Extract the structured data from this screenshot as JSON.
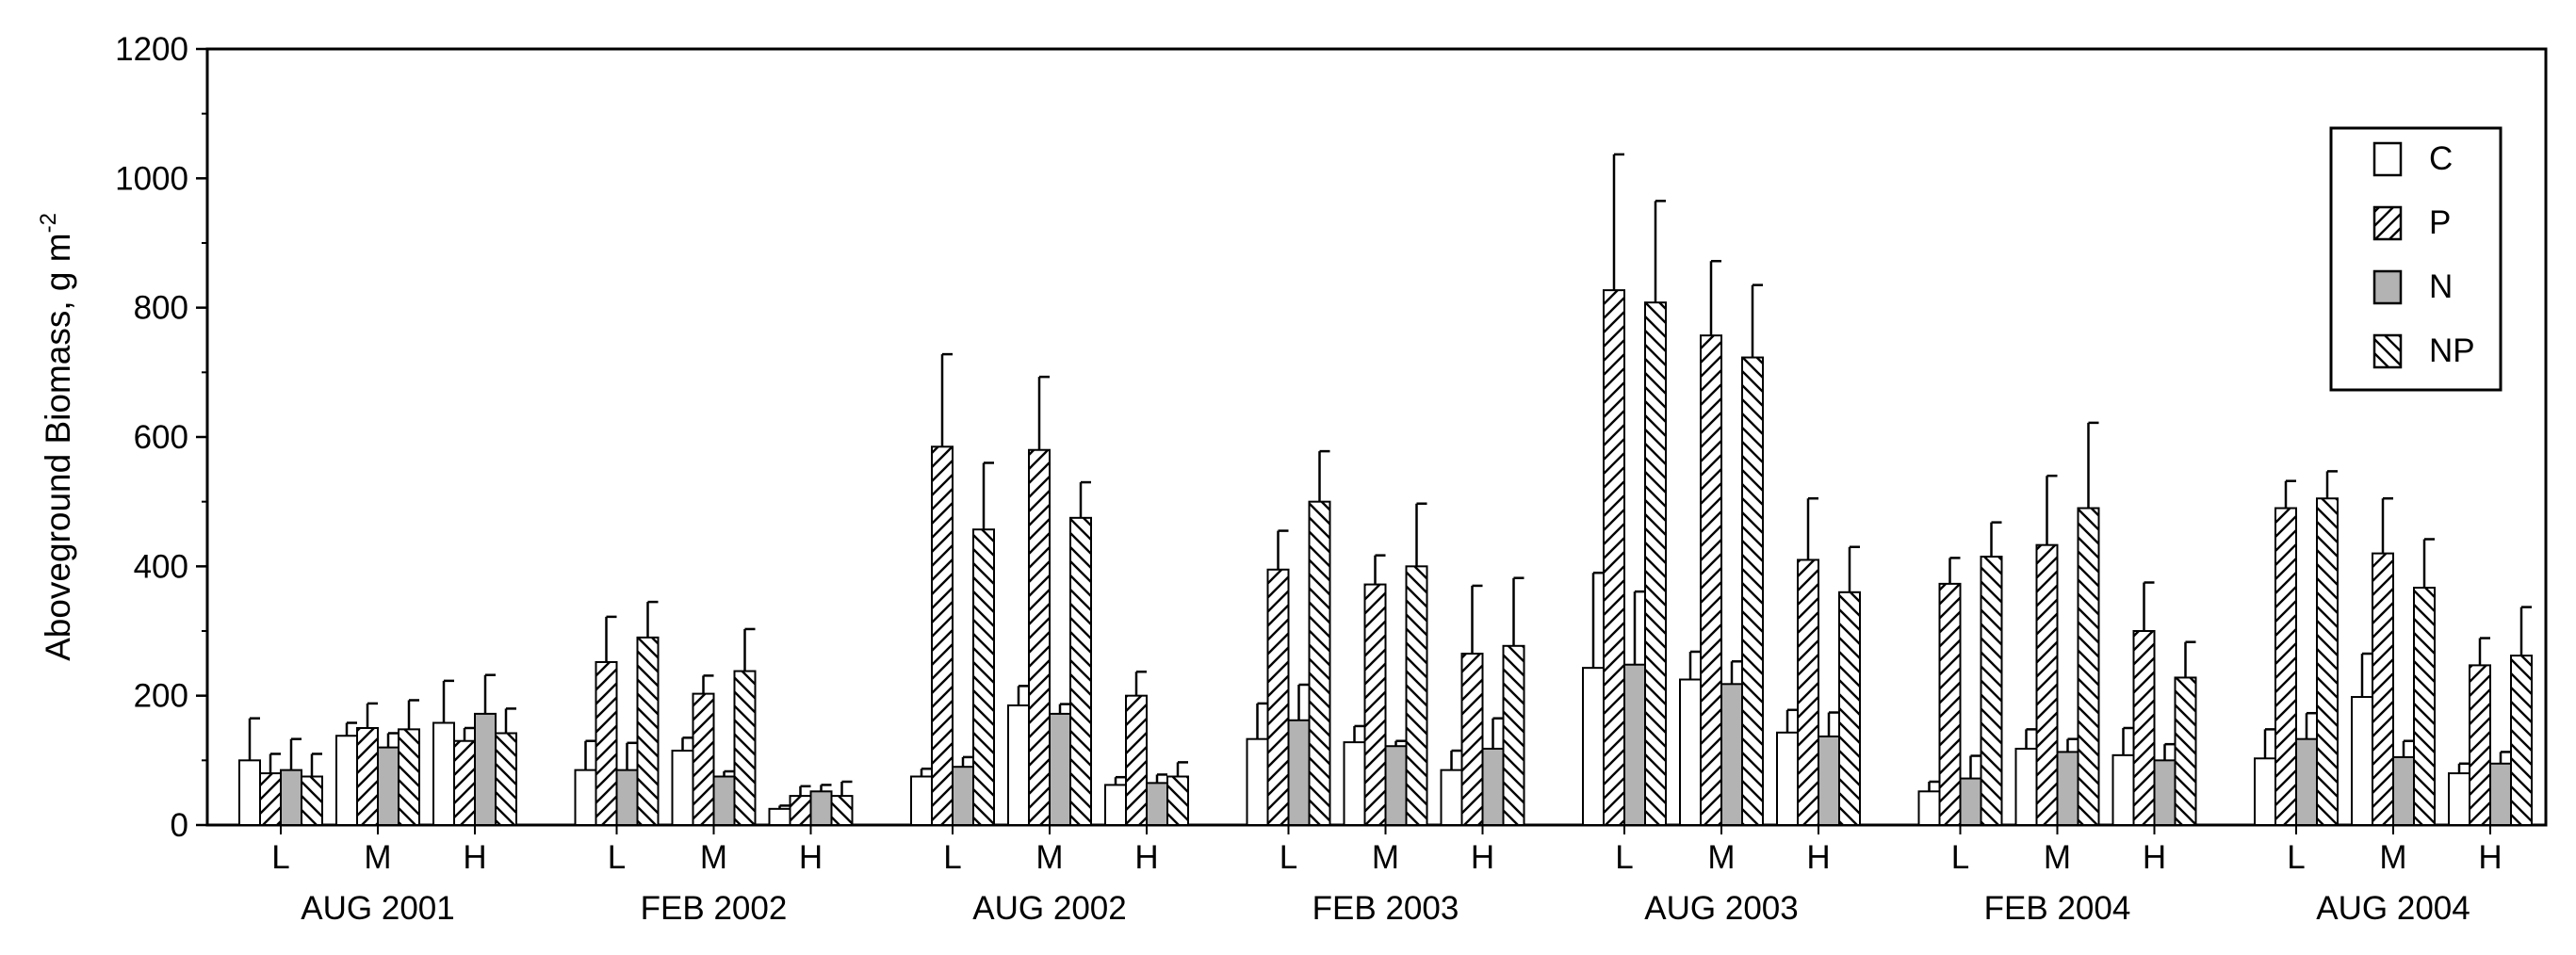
{
  "chart_data": {
    "type": "bar",
    "ylabel": "Aboveground Biomass, g m",
    "ylabel_sup": "-2",
    "xlabel": "",
    "ylim": [
      0,
      1200
    ],
    "yticks": [
      0,
      200,
      400,
      600,
      800,
      1000,
      1200
    ],
    "grid": false,
    "legend_position": "top-right",
    "error_bars": true,
    "series": [
      {
        "name": "C",
        "fill": "#ffffff",
        "pattern": "none"
      },
      {
        "name": "P",
        "fill": "#ffffff",
        "pattern": "hatch-forward"
      },
      {
        "name": "N",
        "fill": "#b3b3b3",
        "pattern": "none"
      },
      {
        "name": "NP",
        "fill": "#ffffff",
        "pattern": "hatch-back"
      }
    ],
    "groups": [
      {
        "label": "AUG 2001",
        "subgroups": [
          {
            "label": "L",
            "values": [
              100,
              80,
              85,
              75
            ],
            "errors": [
              65,
              30,
              48,
              35
            ]
          },
          {
            "label": "M",
            "values": [
              138,
              150,
              120,
              148
            ],
            "errors": [
              20,
              38,
              22,
              45
            ]
          },
          {
            "label": "H",
            "values": [
              158,
              130,
              172,
              142
            ],
            "errors": [
              65,
              20,
              60,
              38
            ]
          }
        ]
      },
      {
        "label": "FEB 2002",
        "subgroups": [
          {
            "label": "L",
            "values": [
              85,
              252,
              85,
              290
            ],
            "errors": [
              45,
              70,
              42,
              55
            ]
          },
          {
            "label": "M",
            "values": [
              115,
              203,
              75,
              238
            ],
            "errors": [
              20,
              28,
              8,
              65
            ]
          },
          {
            "label": "H",
            "values": [
              25,
              45,
              52,
              45
            ],
            "errors": [
              5,
              15,
              10,
              22
            ]
          }
        ]
      },
      {
        "label": "AUG 2002",
        "subgroups": [
          {
            "label": "L",
            "values": [
              75,
              585,
              90,
              457
            ],
            "errors": [
              12,
              143,
              15,
              103
            ]
          },
          {
            "label": "M",
            "values": [
              185,
              580,
              172,
              475
            ],
            "errors": [
              30,
              113,
              15,
              55
            ]
          },
          {
            "label": "H",
            "values": [
              62,
              200,
              65,
              75
            ],
            "errors": [
              12,
              37,
              13,
              22
            ]
          }
        ]
      },
      {
        "label": "FEB 2003",
        "subgroups": [
          {
            "label": "L",
            "values": [
              133,
              395,
              162,
              500
            ],
            "errors": [
              55,
              60,
              55,
              78
            ]
          },
          {
            "label": "M",
            "values": [
              128,
              372,
              122,
              400
            ],
            "errors": [
              25,
              45,
              8,
              97
            ]
          },
          {
            "label": "H",
            "values": [
              85,
              265,
              118,
              277
            ],
            "errors": [
              30,
              105,
              47,
              105
            ]
          }
        ]
      },
      {
        "label": "AUG 2003",
        "subgroups": [
          {
            "label": "L",
            "values": [
              243,
              827,
              248,
              808
            ],
            "errors": [
              147,
              210,
              113,
              157
            ]
          },
          {
            "label": "M",
            "values": [
              225,
              757,
              218,
              723
            ],
            "errors": [
              43,
              115,
              35,
              112
            ]
          },
          {
            "label": "H",
            "values": [
              143,
              410,
              137,
              360
            ],
            "errors": [
              35,
              95,
              37,
              70
            ]
          }
        ]
      },
      {
        "label": "FEB 2004",
        "subgroups": [
          {
            "label": "L",
            "values": [
              52,
              373,
              72,
              415
            ],
            "errors": [
              15,
              40,
              35,
              53
            ]
          },
          {
            "label": "M",
            "values": [
              118,
              433,
              113,
              490
            ],
            "errors": [
              30,
              107,
              20,
              132
            ]
          },
          {
            "label": "H",
            "values": [
              108,
              300,
              100,
              228
            ],
            "errors": [
              42,
              75,
              25,
              55
            ]
          }
        ]
      },
      {
        "label": "AUG 2004",
        "subgroups": [
          {
            "label": "L",
            "values": [
              103,
              490,
              133,
              505
            ],
            "errors": [
              45,
              42,
              40,
              42
            ]
          },
          {
            "label": "M",
            "values": [
              198,
              420,
              105,
              367
            ],
            "errors": [
              67,
              85,
              25,
              75
            ]
          },
          {
            "label": "H",
            "values": [
              80,
              247,
              95,
              262
            ],
            "errors": [
              15,
              42,
              18,
              75
            ]
          }
        ]
      }
    ]
  }
}
